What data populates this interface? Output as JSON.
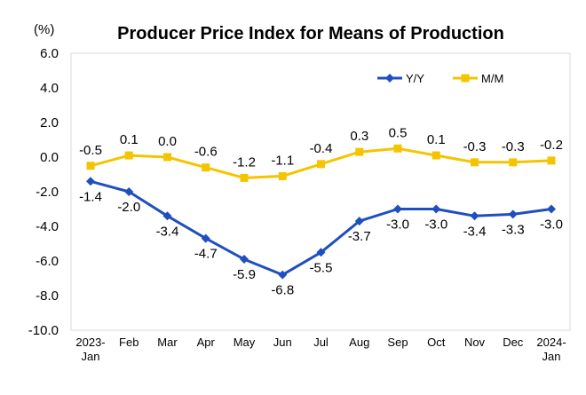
{
  "chart_data": {
    "type": "line",
    "title": "Producer Price Index for Means of Production",
    "unit_label": "(%)",
    "categories": [
      [
        "2023-",
        "Jan"
      ],
      [
        "Feb"
      ],
      [
        "Mar"
      ],
      [
        "Apr"
      ],
      [
        "May"
      ],
      [
        "Jun"
      ],
      [
        "Jul"
      ],
      [
        "Aug"
      ],
      [
        "Sep"
      ],
      [
        "Oct"
      ],
      [
        "Nov"
      ],
      [
        "Dec"
      ],
      [
        "2024-",
        "Jan"
      ]
    ],
    "series": [
      {
        "name": "Y/Y",
        "color": "#1f4fbf",
        "marker": "diamond",
        "values": [
          -1.4,
          -2.0,
          -3.4,
          -4.7,
          -5.9,
          -6.8,
          -5.5,
          -3.7,
          -3.0,
          -3.0,
          -3.4,
          -3.3,
          -3.0
        ],
        "labels": [
          "-1.4",
          "-2.0",
          "-3.4",
          "-4.7",
          "-5.9",
          "-6.8",
          "-5.5",
          "-3.7",
          "-3.0",
          "-3.0",
          "-3.4",
          "-3.3",
          "-3.0"
        ]
      },
      {
        "name": "M/M",
        "color": "#f5c400",
        "marker": "square",
        "values": [
          -0.5,
          0.1,
          0.0,
          -0.6,
          -1.2,
          -1.1,
          -0.4,
          0.3,
          0.5,
          0.1,
          -0.3,
          -0.3,
          -0.2
        ],
        "labels": [
          "-0.5",
          "0.1",
          "0.0",
          "-0.6",
          "-1.2",
          "-1.1",
          "-0.4",
          "0.3",
          "0.5",
          "0.1",
          "-0.3",
          "-0.3",
          "-0.2"
        ]
      }
    ],
    "y_ticks": [
      "6.0",
      "4.0",
      "2.0",
      "0.0",
      "-2.0",
      "-4.0",
      "-6.0",
      "-8.0",
      "-10.0"
    ],
    "ylim": [
      -10,
      6
    ],
    "grid": false,
    "legend_position": "top-right"
  }
}
